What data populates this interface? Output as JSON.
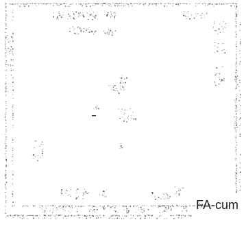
{
  "label": {
    "text": "FA-cum"
  },
  "style": {
    "ink_color": "#3a3a3a",
    "paper_color": "#ffffff"
  }
}
